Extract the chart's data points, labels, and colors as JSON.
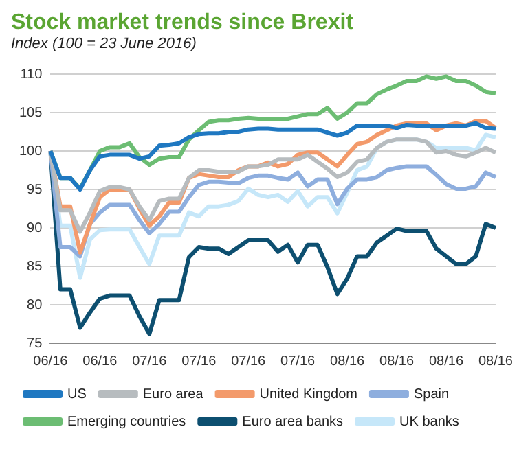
{
  "chart_data": {
    "type": "line",
    "title": "Stock market trends since Brexit",
    "subtitle": "Index (100 = 23 June 2016)",
    "categories": [
      "06/16",
      null,
      null,
      null,
      null,
      "06/16",
      null,
      null,
      null,
      null,
      "07/16",
      null,
      null,
      null,
      null,
      "07/16",
      null,
      null,
      null,
      null,
      "07/16",
      null,
      null,
      null,
      null,
      "07/16",
      null,
      null,
      null,
      null,
      "08/16",
      null,
      null,
      null,
      null,
      "08/16",
      null,
      null,
      null,
      null,
      "08/16",
      null,
      null,
      null,
      null,
      "08/16"
    ],
    "series": [
      {
        "name": "US",
        "color": "#1f78c1",
        "values": [
          100,
          96.5,
          96.5,
          95,
          97.5,
          99.3,
          99.5,
          99.5,
          99.5,
          99,
          99.3,
          100.7,
          100.8,
          101,
          101.8,
          102.2,
          102.3,
          102.3,
          102.5,
          102.5,
          102.8,
          102.9,
          102.9,
          102.8,
          102.8,
          102.8,
          102.8,
          102.8,
          102.4,
          102,
          102.4,
          103.3,
          103.3,
          103.3,
          103.3,
          103,
          103.4,
          103.3,
          103.3,
          103.3,
          103.3,
          103.3,
          103.3,
          103.6,
          103,
          102.9
        ]
      },
      {
        "name": "Euro area",
        "color": "#b7bcbf",
        "values": [
          100,
          92.3,
          92.3,
          89.5,
          92,
          94.8,
          95.3,
          95.3,
          95,
          92.8,
          91,
          93.5,
          93.8,
          93.8,
          96.5,
          97.5,
          97.5,
          97.3,
          97.3,
          97.3,
          98,
          98,
          98.2,
          98.9,
          98.9,
          98.9,
          99.5,
          98.6,
          97.7,
          96.6,
          97.2,
          98.6,
          98.9,
          100.4,
          101.2,
          101.5,
          101.5,
          101.5,
          101.2,
          99.8,
          100,
          99.5,
          99.3,
          99.8,
          100.4,
          99.8
        ]
      },
      {
        "name": "United Kingdom",
        "color": "#f39a6b",
        "values": [
          100,
          92.8,
          92.8,
          86.8,
          90.5,
          94,
          95,
          95,
          95,
          92.5,
          90.3,
          91.5,
          93.3,
          93.3,
          96.5,
          97,
          96.8,
          96.6,
          96.6,
          97.5,
          98,
          98,
          98.5,
          98,
          98.3,
          99.5,
          99.8,
          99.8,
          98.9,
          98,
          99.5,
          100.9,
          101.2,
          102.1,
          102.7,
          103.3,
          103.6,
          103.6,
          103.6,
          102.7,
          103.3,
          103.6,
          103.3,
          103.9,
          103.9,
          103
        ]
      },
      {
        "name": "Spain",
        "color": "#8eaede",
        "values": [
          100,
          87.5,
          87.5,
          86.3,
          90.5,
          92,
          93,
          93,
          93,
          91,
          89.3,
          90.5,
          92.1,
          92.1,
          94,
          95.6,
          96,
          96,
          95.9,
          95.8,
          96.5,
          96.8,
          96.8,
          96.5,
          96.3,
          97.2,
          95.4,
          96.3,
          96.3,
          93.1,
          95.1,
          96.3,
          96.3,
          96.6,
          97.5,
          97.8,
          98,
          98,
          98,
          96.9,
          95.7,
          95.1,
          95.1,
          95.4,
          97.2,
          96.6
        ]
      },
      {
        "name": "Emerging countries",
        "color": "#6cbd73",
        "values": [
          100,
          96.5,
          96.5,
          95.1,
          97.5,
          100,
          100.5,
          100.5,
          101,
          99.2,
          98.2,
          99,
          99.2,
          99.2,
          101.5,
          102.7,
          103.8,
          104,
          104,
          104.2,
          104.3,
          104.2,
          104.1,
          104.2,
          104.2,
          104.5,
          104.8,
          104.8,
          105.6,
          104.2,
          105,
          106.2,
          106.2,
          107.4,
          108,
          108.5,
          109.1,
          109.1,
          109.7,
          109.4,
          109.7,
          109.1,
          109.1,
          108.5,
          107.7,
          107.5
        ]
      },
      {
        "name": "Euro area banks",
        "color": "#0d4f70",
        "values": [
          100,
          82,
          82,
          77,
          79,
          80.8,
          81.2,
          81.2,
          81.2,
          78.5,
          76.2,
          80.6,
          80.6,
          80.6,
          86.2,
          87.5,
          87.3,
          87.3,
          86.6,
          87.5,
          88.4,
          88.4,
          88.4,
          86.9,
          87.8,
          85.5,
          87.8,
          87.8,
          84.9,
          81.4,
          83.4,
          86.3,
          86.3,
          88.1,
          89,
          89.9,
          89.6,
          89.6,
          89.6,
          87.3,
          86.3,
          85.3,
          85.3,
          86.3,
          90.5,
          90
        ]
      },
      {
        "name": "UK banks",
        "color": "#c6e7f9",
        "values": [
          100,
          90.3,
          90.3,
          83.5,
          88.5,
          89.7,
          89.8,
          89.8,
          89.8,
          87.5,
          85.3,
          89,
          89,
          89,
          92,
          91.5,
          92.8,
          92.8,
          93,
          93.5,
          95.1,
          94.3,
          94,
          94.3,
          93.4,
          94.8,
          92.8,
          94,
          94,
          91.9,
          94.6,
          97.5,
          98,
          100.4,
          101.2,
          101.5,
          101.5,
          101.5,
          101.2,
          100.4,
          100.4,
          100.4,
          100.4,
          100.1,
          102.1,
          101.8
        ]
      }
    ],
    "ylim": [
      75,
      110
    ],
    "yticks": [
      75,
      80,
      85,
      90,
      95,
      100,
      105,
      110
    ],
    "grid": "y",
    "legend": "bottom",
    "marker": "none",
    "line_style": "solid"
  }
}
